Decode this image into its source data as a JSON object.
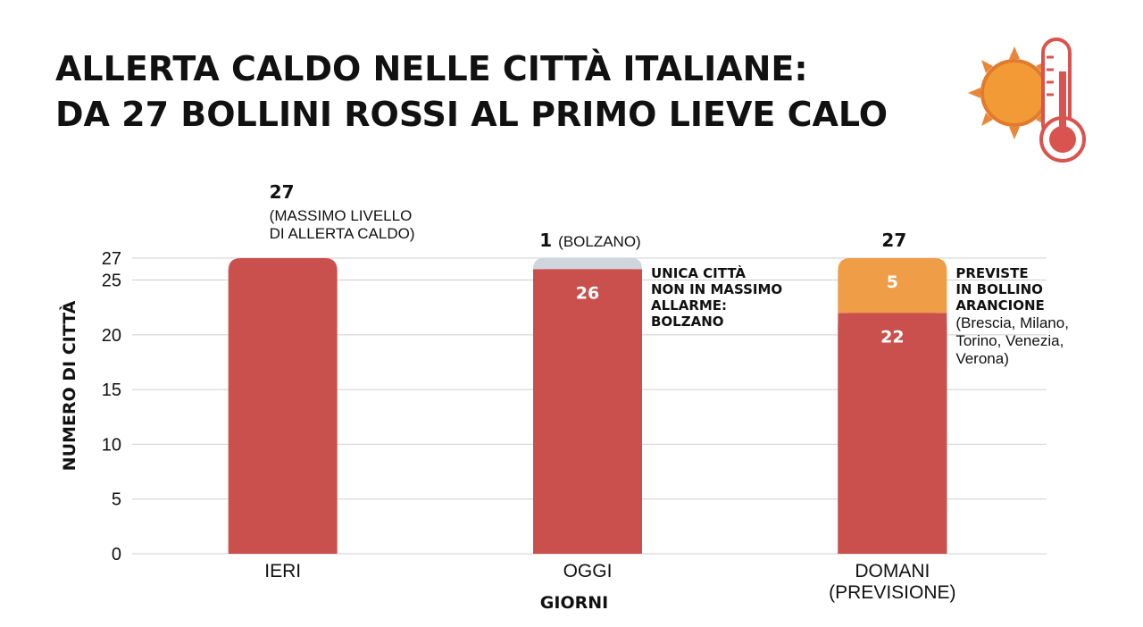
{
  "chart_data": {
    "type": "bar",
    "stacked": true,
    "title_lines": [
      "ALLERTA CALDO NELLE CITTÀ ITALIANE:",
      "DA 27 BOLLINI ROSSI AL PRIMO LIEVE CALO"
    ],
    "xlabel": "GIORNI",
    "ylabel": "NUMERO DI CITTÀ",
    "ylim": [
      0,
      27
    ],
    "yticks": [
      0,
      5,
      10,
      15,
      20,
      25,
      27
    ],
    "grid": true,
    "categories": [
      {
        "lines": [
          "IERI"
        ]
      },
      {
        "lines": [
          "OGGI"
        ]
      },
      {
        "lines": [
          "DOMANI",
          "(PREVISIONE)"
        ]
      }
    ],
    "series": [
      {
        "color": "#c9504c",
        "values": [
          27,
          26,
          22
        ],
        "labels": [
          "",
          "26",
          "22"
        ]
      },
      {
        "color": "#cfd6de",
        "values": [
          0,
          1,
          0
        ],
        "labels": [
          "",
          "",
          ""
        ]
      },
      {
        "color": "#ef9d47",
        "values": [
          0,
          0,
          5
        ],
        "labels": [
          "",
          "",
          "5"
        ]
      }
    ],
    "top_labels": [
      {
        "bold": "27",
        "normal": "",
        "sub": [
          "(MASSIMO LIVELLO",
          "DI ALLERTA CALDO)"
        ]
      },
      {
        "bold": "1",
        "normal": "(BOLZANO)",
        "sub": []
      },
      {
        "bold": "27",
        "normal": "",
        "sub": []
      }
    ],
    "annotations": [
      {
        "category": 1,
        "bold_lines": [
          "UNICA CITTÀ",
          "NON IN MASSIMO",
          "ALLARME:",
          "BOLZANO"
        ],
        "normal_lines": []
      },
      {
        "category": 2,
        "bold_lines": [
          "PREVISTE",
          "IN BOLLINO",
          "ARANCIONE"
        ],
        "normal_lines": [
          "(Brescia, Milano,",
          "Torino, Venezia,",
          "Verona)"
        ]
      }
    ]
  },
  "icons": {
    "header_icon": "sun-thermometer-icon",
    "sun_color": "#f29a35",
    "thermometer_color": "#d9534f"
  }
}
